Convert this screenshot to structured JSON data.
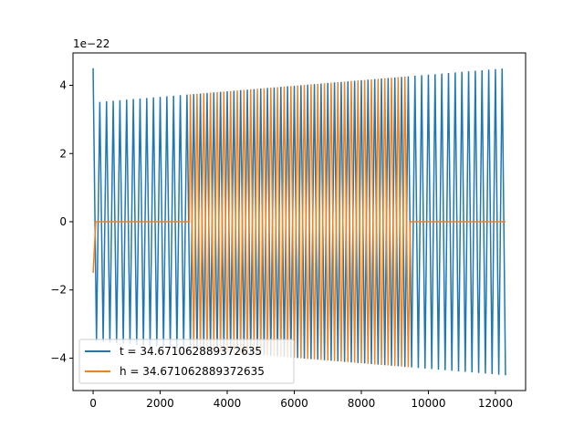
{
  "chart_data": {
    "type": "line",
    "title": "",
    "xlabel": "",
    "ylabel": "",
    "xlim": [
      -600,
      12900
    ],
    "ylim": [
      -4.95,
      4.95
    ],
    "y_offset_label": "1e−22",
    "y_scale": "1e-22",
    "xticks": [
      0,
      2000,
      4000,
      6000,
      8000,
      10000,
      12000
    ],
    "xtick_labels": [
      "0",
      "2000",
      "4000",
      "6000",
      "8000",
      "10000",
      "12000"
    ],
    "yticks": [
      -4,
      -2,
      0,
      2,
      4
    ],
    "ytick_labels": [
      "−4",
      "−2",
      "0",
      "2",
      "4"
    ],
    "grid": false,
    "legend_position": "lower-left",
    "series": [
      {
        "name": "t = 34.671062889372635",
        "color": "#1f77b4",
        "x_start": 0,
        "x_end": 12300,
        "start_value": 4.5,
        "amplitude_start": 3.5,
        "amplitude_end": 4.5,
        "gaps": [],
        "description_values": "oscillating signal, amplitude growing from about 3.5 to 4.5"
      },
      {
        "name": "h = 34.671062889372635",
        "color": "#ff7f0e",
        "x_start": 0,
        "x_end": 12300,
        "start_value": -1.5,
        "amplitude_start": 3.5,
        "amplitude_end": 4.5,
        "gaps": [
          [
            80,
            2870
          ],
          [
            9460,
            12300
          ]
        ],
        "gap_value": 0,
        "description_values": "oscillating signal, zero between about 80–2870 and after about 9460"
      }
    ]
  }
}
